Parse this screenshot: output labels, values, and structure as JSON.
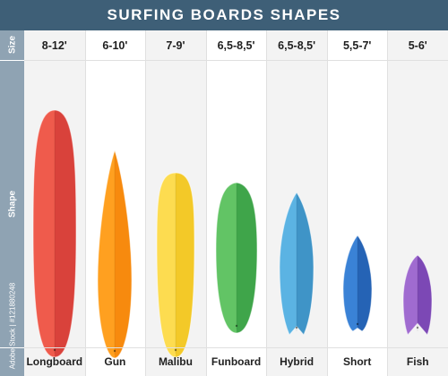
{
  "title": "SURFING BOARDS SHAPES",
  "side_labels": {
    "size": "Size",
    "shape": "Shape",
    "id": "Adobe Stock | #121880248"
  },
  "boards": [
    {
      "name": "Longboard",
      "size": "8-12'",
      "shape": "longboard",
      "colors": [
        "#ef5b4c",
        "#d9423b"
      ]
    },
    {
      "name": "Gun",
      "size": "6-10'",
      "shape": "gun",
      "colors": [
        "#ffa020",
        "#f78a0e"
      ]
    },
    {
      "name": "Malibu",
      "size": "7-9'",
      "shape": "malibu",
      "colors": [
        "#fddc50",
        "#f3c928"
      ]
    },
    {
      "name": "Funboard",
      "size": "6,5-8,5'",
      "shape": "funboard",
      "colors": [
        "#62c465",
        "#3fa54a"
      ]
    },
    {
      "name": "Hybrid",
      "size": "6,5-8,5'",
      "shape": "hybrid",
      "colors": [
        "#5bb3e3",
        "#3f94c7"
      ]
    },
    {
      "name": "Short",
      "size": "5,5-7'",
      "shape": "short",
      "colors": [
        "#3a82d6",
        "#2563b5"
      ]
    },
    {
      "name": "Fish",
      "size": "5-6'",
      "shape": "fish",
      "colors": [
        "#a06bd0",
        "#7c48b5"
      ]
    }
  ]
}
